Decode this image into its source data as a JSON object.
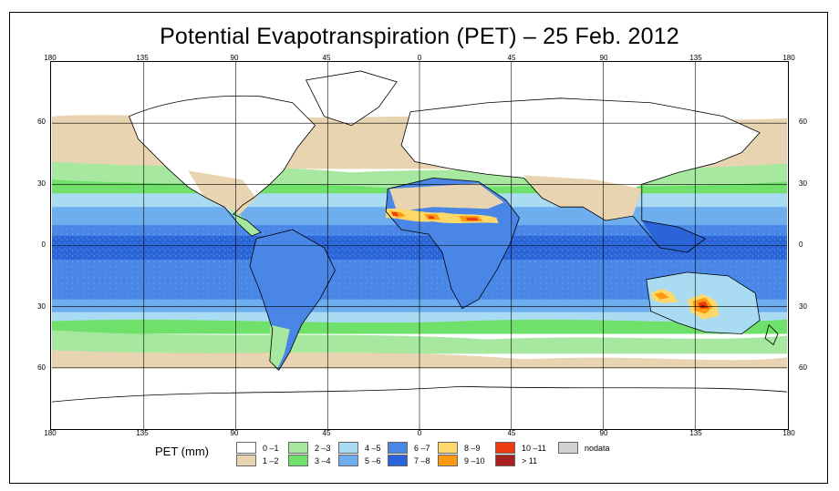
{
  "title": "Potential Evapotranspiration (PET) – 25 Feb. 2012",
  "axes": {
    "lon_ticks": [
      "180",
      "135",
      "90",
      "45",
      "0",
      "45",
      "90",
      "135",
      "180"
    ],
    "lat_left": [
      "60",
      "30",
      "0",
      "30",
      "60"
    ],
    "lat_right": [
      "60",
      "30",
      "0",
      "30",
      "60"
    ]
  },
  "legend": {
    "title": "PET (mm)",
    "classes": [
      {
        "label": "0 –1",
        "color": "#ffffff"
      },
      {
        "label": "1 –2",
        "color": "#e8d4b0"
      },
      {
        "label": "2 –3",
        "color": "#a6e8a0"
      },
      {
        "label": "3 –4",
        "color": "#6fe06a"
      },
      {
        "label": "4 –5",
        "color": "#a9dcf2"
      },
      {
        "label": "5 –6",
        "color": "#6faeee"
      },
      {
        "label": "6 –7",
        "color": "#4a86e6"
      },
      {
        "label": "7 –8",
        "color": "#2a64d8"
      },
      {
        "label": "8 –9",
        "color": "#ffd86a"
      },
      {
        "label": "9 –10",
        "color": "#ff9a10"
      },
      {
        "label": "10 –11",
        "color": "#ee3a10"
      },
      {
        "label": "> 11",
        "color": "#a82020"
      },
      {
        "label": "nodata",
        "color": "#d0d0d0"
      }
    ]
  },
  "colors": {
    "frame": "#000000",
    "grid": "#000000",
    "coast": "#000000"
  }
}
